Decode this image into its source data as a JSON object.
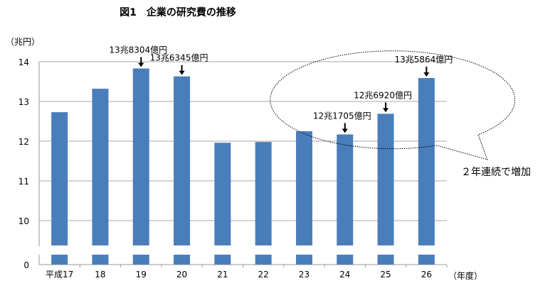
{
  "chart_data": {
    "type": "bar",
    "title": "図1　企業の研究費の推移",
    "ylabel": "（兆円）",
    "xlabel": "（年度）",
    "categories": [
      "平成17",
      "18",
      "19",
      "20",
      "21",
      "22",
      "23",
      "24",
      "25",
      "26"
    ],
    "values": [
      12.73,
      13.32,
      13.83,
      13.63,
      11.96,
      11.98,
      12.25,
      12.17,
      12.69,
      13.59
    ],
    "yticks": [
      "0",
      "10",
      "11",
      "12",
      "13",
      "14"
    ],
    "ylim_upper": [
      10,
      14
    ],
    "axis_break": true,
    "grid": true,
    "bar_color": "#4a7ebb",
    "annotations": [
      {
        "category": "19",
        "text": "13兆8304億円"
      },
      {
        "category": "20",
        "text": "13兆6345億円"
      },
      {
        "category": "24",
        "text": "12兆1705億円"
      },
      {
        "category": "25",
        "text": "12兆6920億円"
      },
      {
        "category": "26",
        "text": "13兆5864億円"
      }
    ],
    "callout": "２年連続で増加"
  }
}
